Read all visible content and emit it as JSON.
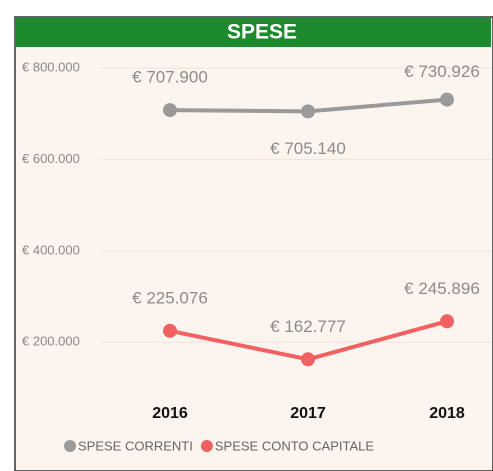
{
  "chart_data": {
    "type": "line",
    "title": "SPESE",
    "categories": [
      "2016",
      "2017",
      "2018"
    ],
    "series": [
      {
        "name": "SPESE CORRENTI",
        "color": "#9a9a9a",
        "values": [
          707900,
          705140,
          730926
        ],
        "value_labels": [
          "€ 707.900",
          "€ 705.140",
          "€ 730.926"
        ]
      },
      {
        "name": "SPESE CONTO CAPITALE",
        "color": "#f26161",
        "values": [
          225076,
          162777,
          245896
        ],
        "value_labels": [
          "€ 225.076",
          "€ 162.777",
          "€ 245.896"
        ]
      }
    ],
    "ylim": [
      100000,
      800000
    ],
    "yticks": [
      {
        "value": 200000,
        "label": "€ 200.000"
      },
      {
        "value": 400000,
        "label": "€ 400.000"
      },
      {
        "value": 600000,
        "label": "€ 600.000"
      },
      {
        "value": 800000,
        "label": "€ 800.000"
      }
    ],
    "grid": true,
    "legend": "bottom"
  }
}
